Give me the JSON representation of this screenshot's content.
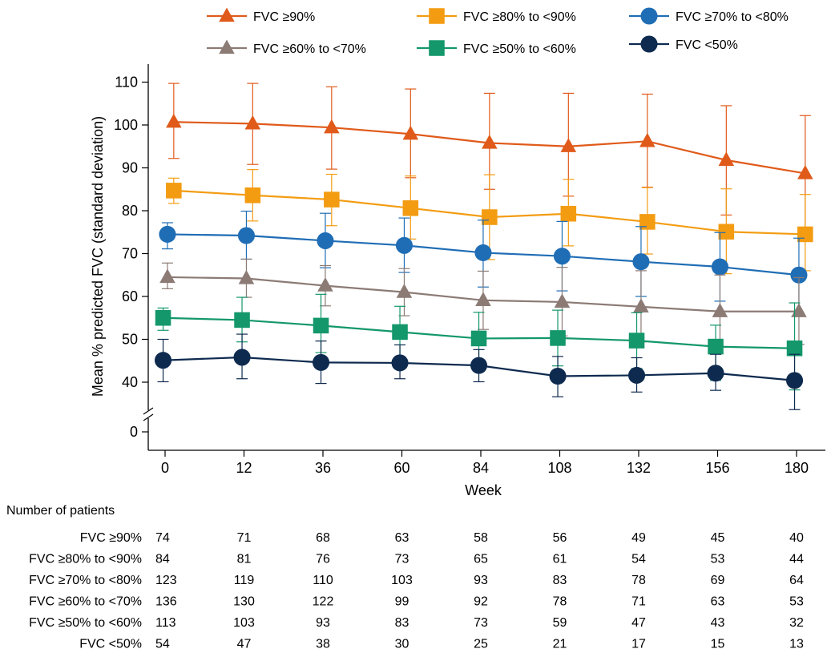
{
  "chart_data": {
    "type": "line",
    "xlabel": "Week",
    "ylabel": "Mean % predicted FVC (standard deviation)",
    "x": [
      0,
      12,
      36,
      60,
      84,
      108,
      132,
      156,
      180
    ],
    "x_tick_labels": [
      "0",
      "12",
      "36",
      "60",
      "84",
      "108",
      "132",
      "156",
      "180"
    ],
    "y_ticks": [
      0,
      40,
      50,
      60,
      70,
      80,
      90,
      100,
      110
    ],
    "y_tick_labels": [
      "0",
      "40",
      "50",
      "60",
      "70",
      "80",
      "90",
      "100",
      "110"
    ],
    "y_axis_break": true,
    "ylim": [
      0,
      110
    ],
    "grid": false,
    "legend_position": "top",
    "series": [
      {
        "name": "FVC ≥90%",
        "color": "#E05A1A",
        "marker": "triangle",
        "values": [
          100.7,
          100.3,
          99.4,
          97.9,
          95.8,
          95.0,
          96.2,
          91.8,
          88.7
        ],
        "sd_upper": [
          109.7,
          109.7,
          108.9,
          108.4,
          107.4,
          107.4,
          107.2,
          104.5,
          102.2
        ],
        "sd_lower": [
          92.2,
          90.8,
          89.7,
          87.7,
          85.0,
          83.4,
          85.5,
          79.0,
          75.4
        ]
      },
      {
        "name": "FVC ≥80% to <90%",
        "color": "#F39C12",
        "marker": "square",
        "values": [
          84.7,
          83.6,
          82.6,
          80.6,
          78.5,
          79.3,
          77.4,
          75.1,
          74.5
        ],
        "sd_upper": [
          87.6,
          89.6,
          88.5,
          88.1,
          88.4,
          87.3,
          85.4,
          85.1,
          83.8
        ],
        "sd_lower": [
          81.7,
          77.6,
          76.5,
          73.4,
          68.6,
          71.8,
          69.9,
          65.3,
          66.0
        ]
      },
      {
        "name": "FVC ≥70% to <80%",
        "color": "#1F6DB5",
        "marker": "circle",
        "values": [
          74.5,
          74.2,
          73.0,
          71.9,
          70.2,
          69.4,
          68.1,
          66.9,
          65.0
        ],
        "sd_upper": [
          77.2,
          79.9,
          79.4,
          78.3,
          77.8,
          77.5,
          76.3,
          74.9,
          73.6
        ],
        "sd_lower": [
          71.1,
          68.7,
          66.7,
          65.6,
          62.2,
          61.3,
          60.0,
          58.9,
          55.4
        ]
      },
      {
        "name": "FVC ≥60% to <70%",
        "color": "#8C7B75",
        "marker": "triangle",
        "values": [
          64.5,
          64.2,
          62.5,
          61.0,
          59.1,
          58.7,
          57.6,
          56.5,
          56.5
        ],
        "sd_upper": [
          67.8,
          68.7,
          67.2,
          66.5,
          65.9,
          66.8,
          66.0,
          65.0,
          64.4
        ],
        "sd_lower": [
          61.8,
          59.8,
          57.8,
          55.5,
          52.3,
          50.8,
          49.4,
          48.2,
          48.8
        ]
      },
      {
        "name": "FVC ≥50% to <60%",
        "color": "#13976B",
        "marker": "square",
        "values": [
          55.0,
          54.5,
          53.2,
          51.7,
          50.2,
          50.3,
          49.7,
          48.3,
          47.9
        ],
        "sd_upper": [
          57.3,
          59.8,
          60.5,
          57.7,
          56.3,
          56.8,
          56.2,
          53.3,
          58.5
        ],
        "sd_lower": [
          52.1,
          49.4,
          46.9,
          45.7,
          44.1,
          43.8,
          43.2,
          40.4,
          38.2
        ]
      },
      {
        "name": "FVC <50%",
        "color": "#0E2A4F",
        "marker": "circle",
        "values": [
          45.1,
          45.8,
          44.6,
          44.5,
          43.9,
          41.4,
          41.6,
          42.1,
          40.4
        ],
        "sd_upper": [
          50.0,
          51.2,
          49.6,
          48.7,
          47.6,
          46.0,
          45.7,
          46.5,
          46.5
        ],
        "sd_lower": [
          40.1,
          40.8,
          39.7,
          40.8,
          40.1,
          36.6,
          37.7,
          38.1,
          33.6
        ]
      }
    ]
  },
  "patients_table": {
    "title": "Number of patients",
    "rows": [
      {
        "label": "FVC ≥90%",
        "values": [
          "74",
          "71",
          "68",
          "63",
          "58",
          "56",
          "49",
          "45",
          "40"
        ]
      },
      {
        "label": "FVC ≥80% to <90%",
        "values": [
          "84",
          "81",
          "76",
          "73",
          "65",
          "61",
          "54",
          "53",
          "44"
        ]
      },
      {
        "label": "FVC ≥70% to <80%",
        "values": [
          "123",
          "119",
          "110",
          "103",
          "93",
          "83",
          "78",
          "69",
          "64"
        ]
      },
      {
        "label": "FVC ≥60% to <70%",
        "values": [
          "136",
          "130",
          "122",
          "99",
          "92",
          "78",
          "71",
          "63",
          "53"
        ]
      },
      {
        "label": "FVC ≥50% to <60%",
        "values": [
          "113",
          "103",
          "93",
          "83",
          "73",
          "59",
          "47",
          "43",
          "32"
        ]
      },
      {
        "label": "FVC <50%",
        "values": [
          "54",
          "47",
          "38",
          "30",
          "25",
          "21",
          "17",
          "15",
          "13"
        ]
      }
    ]
  }
}
